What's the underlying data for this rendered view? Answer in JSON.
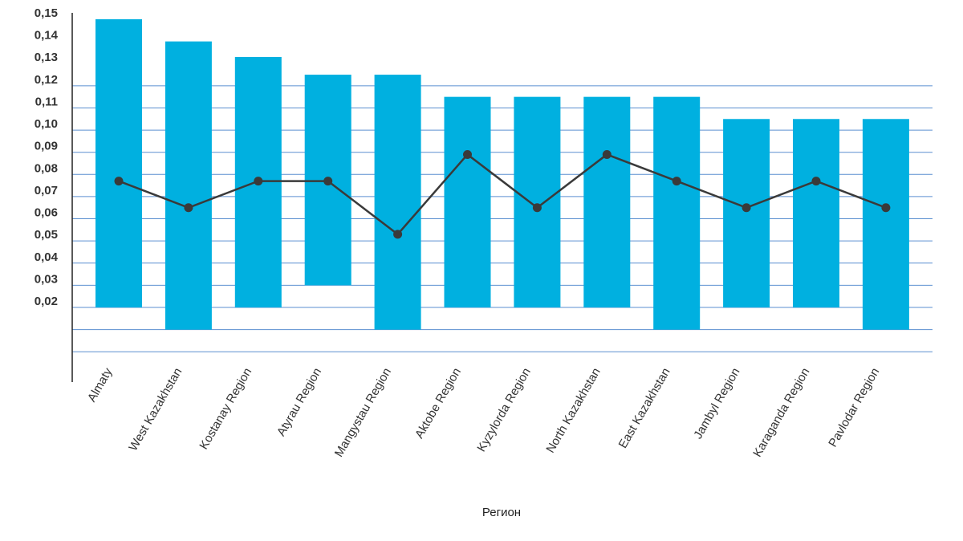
{
  "chart_data": {
    "type": "bar",
    "title": "",
    "xlabel": "Регион",
    "ylabel": "",
    "categories": [
      "Almaty",
      "West Kazakhstan",
      "Kostanay Region",
      "Atyrau Region",
      "Mangystau Region",
      "Aktobe Region",
      "Kyzylorda Region",
      "North Kazakhstan",
      "East Kazakhstan",
      "Jambyl Region",
      "Karaganda Region",
      "Pavlodar Region"
    ],
    "y_ticks": [
      "0,02",
      "0,03",
      "0,04",
      "0,05",
      "0,06",
      "0,07",
      "0,08",
      "0,09",
      "0,10",
      "0,11",
      "0,12",
      "0,13",
      "0,14",
      "0,15"
    ],
    "ylim": [
      0.02,
      0.15
    ],
    "grid": true,
    "series": [
      {
        "type": "floating-bar",
        "low": [
          0.02,
          0.01,
          0.02,
          0.03,
          0.01,
          0.02,
          0.02,
          0.02,
          0.01,
          0.02,
          0.02,
          0.01
        ],
        "high": [
          0.15,
          0.14,
          0.133,
          0.125,
          0.125,
          0.115,
          0.115,
          0.115,
          0.115,
          0.105,
          0.105,
          0.105
        ]
      },
      {
        "type": "line",
        "values": [
          0.077,
          0.065,
          0.077,
          0.077,
          0.053,
          0.089,
          0.065,
          0.089,
          0.077,
          0.065,
          0.077,
          0.065
        ]
      }
    ],
    "colors": {
      "bar": "#00b0e0",
      "line": "#3a3a3a",
      "grid": "#5b8fd0",
      "axis": "#222222"
    }
  }
}
